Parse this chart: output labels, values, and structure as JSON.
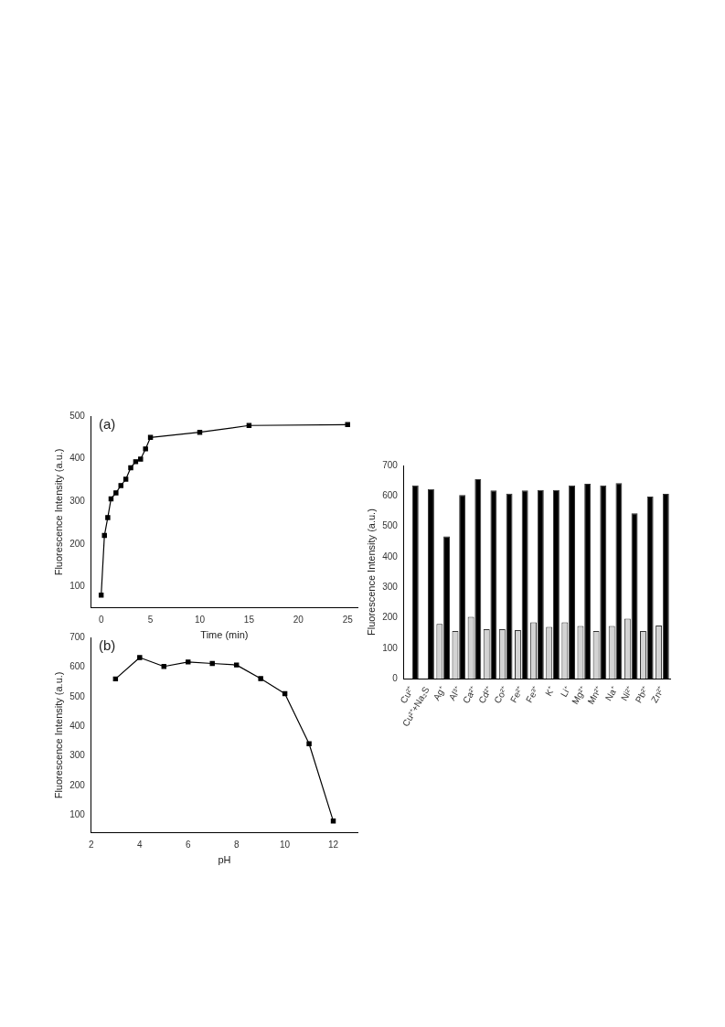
{
  "chart_data": [
    {
      "type": "line",
      "title": "(a)",
      "xlabel": "Time (min)",
      "ylabel": "Fluorescence Intensity (a.u.)",
      "x": [
        0,
        0.33,
        0.67,
        1,
        1.5,
        2,
        2.5,
        3,
        3.5,
        4,
        4.5,
        5,
        10,
        15,
        25
      ],
      "values": [
        80,
        220,
        262,
        306,
        320,
        337,
        352,
        379,
        393,
        399,
        423,
        450,
        462,
        478,
        480
      ],
      "color": "#000000",
      "marker": "square",
      "xlim": [
        -1,
        26
      ],
      "xticks": [
        0,
        5,
        10,
        15,
        20,
        25
      ],
      "ylim": [
        50,
        500
      ],
      "yticks": [
        100,
        200,
        300,
        400,
        500
      ]
    },
    {
      "type": "line",
      "title": "(b)",
      "xlabel": "pH",
      "ylabel": "Fluorescence Intensity (a.u.)",
      "x": [
        3,
        4,
        5,
        6,
        7,
        8,
        9,
        10,
        11,
        12
      ],
      "values": [
        560,
        632,
        602,
        617,
        612,
        607,
        561,
        510,
        341,
        80
      ],
      "color": "#000000",
      "marker": "square",
      "xlim": [
        2,
        13
      ],
      "xticks": [
        2,
        4,
        6,
        8,
        10,
        12
      ],
      "ylim": [
        40,
        700
      ],
      "yticks": [
        100,
        200,
        300,
        400,
        500,
        600,
        700
      ]
    },
    {
      "type": "bar",
      "ylabel": "Fluorescence Intensity (a.u.)",
      "categories": [
        "Cu²⁺",
        "Cu²⁺+Na₂S",
        "Ag⁺",
        "Al³⁺",
        "Ca²⁺",
        "Cd²⁺",
        "Co²⁺",
        "Fe²⁺",
        "Fe³⁺",
        "K⁺",
        "Li⁺",
        "Mg²⁺",
        "Mn²⁺",
        "Na⁺",
        "Ni²⁺",
        "Pb²⁺",
        "Zn²⁺"
      ],
      "series": [
        {
          "color": "#d3d3d3",
          "values": [
            null,
            null,
            180,
            157,
            203,
            163,
            163,
            160,
            185,
            170,
            185,
            173,
            157,
            173,
            197,
            157,
            175
          ]
        },
        {
          "color": "#000000",
          "values": [
            635,
            623,
            467,
            603,
            655,
            618,
            608,
            618,
            620,
            620,
            635,
            640,
            635,
            642,
            543,
            598,
            607
          ]
        }
      ],
      "ylim": [
        0,
        700
      ],
      "yticks": [
        0,
        100,
        200,
        300,
        400,
        500,
        600,
        700
      ]
    }
  ]
}
